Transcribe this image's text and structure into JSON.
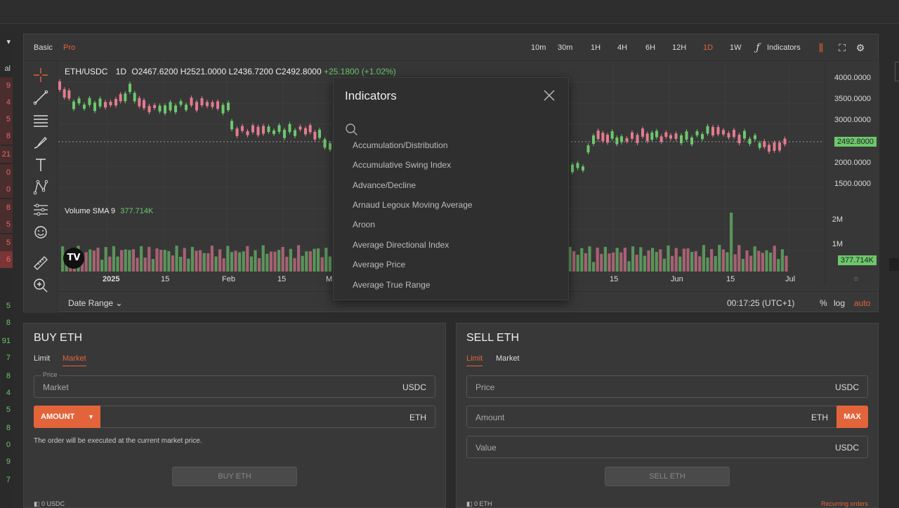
{
  "chart": {
    "modes": [
      "Basic",
      "Pro"
    ],
    "timeframes": [
      "10m",
      "30m",
      "1H",
      "4H",
      "6H",
      "12H",
      "1D",
      "1W"
    ],
    "indicators_label": "Indicators",
    "symbol": "ETH/USDC",
    "interval": "1D",
    "ohlc": "O2467.6200 H2521.0000 L2436.7200 C2492.8000",
    "change": "+25.1800 (+1.02%)",
    "volume_label": "Volume SMA 9",
    "volume_value": "377.714K",
    "price_labels": [
      "4000.0000",
      "3500.0000",
      "3000.0000",
      "2000.0000",
      "1500.0000"
    ],
    "current_price": "2492.8000",
    "volume_axis": [
      "2M",
      "1M"
    ],
    "volume_tag": "377.714K",
    "x_labels": [
      "2025",
      "15",
      "Feb",
      "15",
      "M",
      "15",
      "Jun",
      "15",
      "Jul"
    ],
    "date_range": "Date Range",
    "clock": "00:17:25 (UTC+1)",
    "scale_opts": [
      "%",
      "log",
      "auto"
    ],
    "accent": "#e3643a",
    "up_color": "#6cc86c",
    "down_color": "#e47b8f"
  },
  "indicators_modal": {
    "title": "Indicators",
    "items": [
      "Accumulation/Distribution",
      "Accumulative Swing Index",
      "Advance/Decline",
      "Arnaud Legoux Moving Average",
      "Aroon",
      "Average Directional Index",
      "Average Price",
      "Average True Range"
    ]
  },
  "buy": {
    "title": "BUY ETH",
    "tabs": [
      "Limit",
      "Market"
    ],
    "price_mini": "Price",
    "price_value": "Market",
    "price_unit": "USDC",
    "amount_label": "AMOUNT",
    "amount_unit": "ETH",
    "note": "The order will be executed at the current market price.",
    "button": "BUY ETH",
    "balance": "0 USDC"
  },
  "sell": {
    "title": "SELL ETH",
    "tabs": [
      "Limit",
      "Market"
    ],
    "price_placeholder": "Price",
    "price_unit": "USDC",
    "amount_placeholder": "Amount",
    "amount_unit": "ETH",
    "max": "MAX",
    "value_placeholder": "Value",
    "value_unit": "USDC",
    "button": "SELL ETH",
    "balance": "0 ETH",
    "recurring": "Recurring orders"
  },
  "left_strip": [
    "9",
    "4",
    "5",
    "8",
    "21",
    "0",
    "0",
    "8",
    "5",
    "5",
    "6",
    "5",
    "8",
    "91",
    "7",
    "8",
    "4",
    "5",
    "8",
    "0",
    "9",
    "7"
  ]
}
